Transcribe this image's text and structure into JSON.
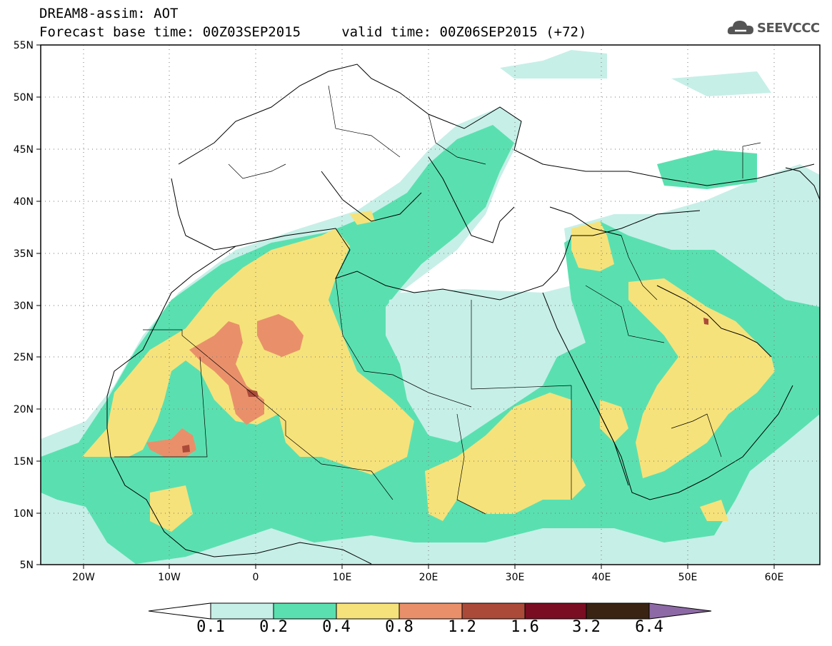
{
  "header": {
    "title_line1": "DREAM8-assim: AOT",
    "title_line2": "Forecast base time: 00Z03SEP2015     valid time: 00Z06SEP2015 (+72)"
  },
  "logo": {
    "text": "SEEVCCC",
    "icon": "cloud-icon"
  },
  "map": {
    "lon_range": [
      -25,
      65
    ],
    "lat_range": [
      5,
      55
    ],
    "lat_ticks": [
      "55N",
      "50N",
      "45N",
      "40N",
      "35N",
      "30N",
      "25N",
      "20N",
      "15N",
      "10N",
      "5N"
    ],
    "lon_ticks": [
      "20W",
      "10W",
      "0",
      "10E",
      "20E",
      "30E",
      "40E",
      "50E",
      "60E"
    ]
  },
  "colorbar": {
    "labels": [
      "0.1",
      "0.2",
      "0.4",
      "0.8",
      "1.2",
      "1.6",
      "3.2",
      "6.4"
    ],
    "colors": [
      "#ffffff",
      "#c6efe7",
      "#5ae0b0",
      "#f6e27a",
      "#e9906a",
      "#ac4a3a",
      "#7a0d22",
      "#3a2313",
      "#8d6aa6"
    ]
  },
  "legend_colors": {
    "lt01": "#ffffff",
    "c01_02": "#c6efe7",
    "c02_04": "#5ae0b0",
    "c04_08": "#f6e27a",
    "c08_12": "#e9906a",
    "c12_16": "#ac4a3a"
  }
}
